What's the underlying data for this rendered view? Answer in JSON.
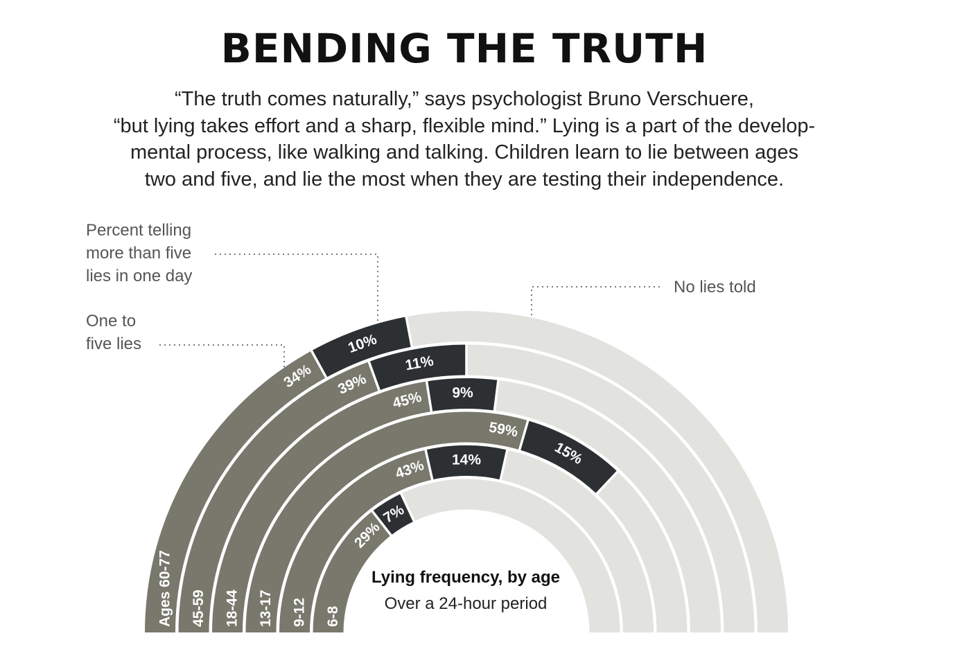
{
  "title": "BENDING THE TRUTH",
  "intro_lines": [
    "“The truth comes naturally,” says psychologist Bruno Verschuere,",
    "“but lying takes effort and a sharp, flexible mind.” Lying is a part of the develop-",
    "mental process, like walking and talking. Children learn to lie between ages",
    "two and five, and lie the most when they are testing their independence."
  ],
  "callouts": {
    "more_than_five": [
      "Percent telling",
      "more than five",
      "lies in one day"
    ],
    "one_to_five": [
      "One to",
      "five lies"
    ],
    "none": [
      "No lies told"
    ]
  },
  "caption": {
    "title": "Lying frequency, by age",
    "subtitle": "Over a 24-hour period"
  },
  "colors": {
    "one_to_five": "#79786d",
    "more_than_five": "#2d3032",
    "none": "#e2e2df",
    "divider": "#ffffff",
    "callout_line": "#777777"
  },
  "chart_data": {
    "type": "radial-stacked-bar",
    "categories": [
      "Ages 60-77",
      "45-59",
      "18-44",
      "13-17",
      "9-12",
      "6-8"
    ],
    "series": [
      {
        "name": "One to five lies",
        "values": [
          34,
          39,
          45,
          59,
          43,
          29
        ],
        "labels": [
          "34%",
          "39%",
          "45%",
          "59%",
          "43%",
          "29%"
        ]
      },
      {
        "name": "Percent telling more than five lies in one day",
        "values": [
          10,
          11,
          9,
          15,
          14,
          7
        ],
        "labels": [
          "10%",
          "11%",
          "9%",
          "15%",
          "14%",
          "7%"
        ]
      },
      {
        "name": "No lies told",
        "values": [
          56,
          50,
          46,
          26,
          43,
          64
        ]
      }
    ],
    "scale": [
      0,
      100
    ]
  }
}
